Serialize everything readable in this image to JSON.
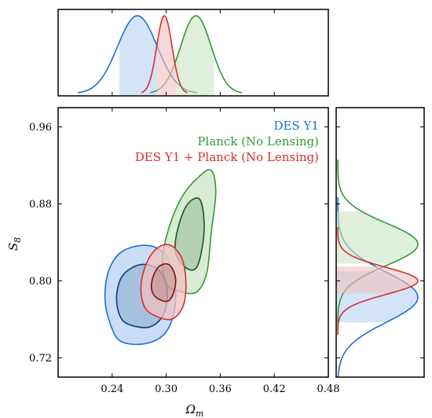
{
  "chart_data": {
    "type": "contour",
    "xlabel": "Ω",
    "xlabel_sub": "m",
    "ylabel": "S",
    "ylabel_sub": "8",
    "xlim": [
      0.18,
      0.48
    ],
    "ylim": [
      0.7,
      0.98
    ],
    "xticks": [
      0.24,
      0.3,
      0.36,
      0.42,
      0.48
    ],
    "xtick_labels": [
      "0.24",
      "0.30",
      "0.36",
      "0.42",
      "0.48"
    ],
    "yticks": [
      0.72,
      0.8,
      0.88,
      0.96
    ],
    "ytick_labels": [
      "0.72",
      "0.80",
      "0.88",
      "0.96"
    ],
    "legend_position": "top-right",
    "series": [
      {
        "name": "DES Y1",
        "color": "#1a6fd6",
        "dark": "#0d3b7a",
        "fill": "#b7d2f3",
        "omega_m": {
          "mean": 0.268,
          "sigma": 0.022,
          "shade": [
            0.248,
            0.29
          ]
        },
        "s8": {
          "mean": 0.783,
          "sigma": 0.026,
          "shade": [
            0.757,
            0.81
          ]
        },
        "outer": [
          [
            0.25,
            0.737
          ],
          [
            0.278,
            0.735
          ],
          [
            0.3,
            0.747
          ],
          [
            0.31,
            0.775
          ],
          [
            0.308,
            0.808
          ],
          [
            0.296,
            0.83
          ],
          [
            0.276,
            0.837
          ],
          [
            0.25,
            0.83
          ],
          [
            0.236,
            0.81
          ],
          [
            0.232,
            0.782
          ],
          [
            0.238,
            0.755
          ]
        ],
        "inner": [
          [
            0.258,
            0.755
          ],
          [
            0.281,
            0.752
          ],
          [
            0.297,
            0.765
          ],
          [
            0.301,
            0.79
          ],
          [
            0.292,
            0.811
          ],
          [
            0.272,
            0.817
          ],
          [
            0.252,
            0.806
          ],
          [
            0.245,
            0.785
          ],
          [
            0.248,
            0.765
          ]
        ]
      },
      {
        "name": "Planck (No Lensing)",
        "color": "#2f9b35",
        "dark": "#145a1a",
        "fill": "#c9e5c3",
        "omega_m": {
          "mean": 0.333,
          "sigma": 0.017,
          "shade": [
            0.311,
            0.353
          ]
        },
        "s8": {
          "mean": 0.838,
          "sigma": 0.022,
          "shade": [
            0.818,
            0.872
          ]
        },
        "outer": [
          [
            0.312,
            0.79
          ],
          [
            0.333,
            0.788
          ],
          [
            0.345,
            0.808
          ],
          [
            0.35,
            0.85
          ],
          [
            0.355,
            0.892
          ],
          [
            0.35,
            0.915
          ],
          [
            0.336,
            0.908
          ],
          [
            0.318,
            0.888
          ],
          [
            0.303,
            0.855
          ],
          [
            0.296,
            0.823
          ],
          [
            0.3,
            0.798
          ]
        ],
        "inner": [
          [
            0.32,
            0.815
          ],
          [
            0.333,
            0.813
          ],
          [
            0.34,
            0.835
          ],
          [
            0.342,
            0.862
          ],
          [
            0.337,
            0.885
          ],
          [
            0.324,
            0.88
          ],
          [
            0.314,
            0.858
          ],
          [
            0.31,
            0.832
          ]
        ]
      },
      {
        "name": "DES Y1 + Planck (No Lensing)",
        "color": "#d42f2f",
        "dark": "#7a1414",
        "fill": "#f2c0c0",
        "omega_m": {
          "mean": 0.298,
          "sigma": 0.0085,
          "shade": [
            0.29,
            0.311
          ]
        },
        "s8": {
          "mean": 0.8,
          "sigma": 0.014,
          "shade": [
            0.787,
            0.815
          ]
        },
        "outer": [
          [
            0.285,
            0.765
          ],
          [
            0.305,
            0.76
          ],
          [
            0.318,
            0.772
          ],
          [
            0.322,
            0.795
          ],
          [
            0.318,
            0.822
          ],
          [
            0.305,
            0.837
          ],
          [
            0.29,
            0.834
          ],
          [
            0.278,
            0.818
          ],
          [
            0.272,
            0.795
          ],
          [
            0.275,
            0.775
          ]
        ],
        "inner": [
          [
            0.29,
            0.782
          ],
          [
            0.302,
            0.779
          ],
          [
            0.309,
            0.79
          ],
          [
            0.31,
            0.805
          ],
          [
            0.303,
            0.817
          ],
          [
            0.292,
            0.815
          ],
          [
            0.285,
            0.803
          ],
          [
            0.284,
            0.79
          ]
        ]
      }
    ]
  }
}
